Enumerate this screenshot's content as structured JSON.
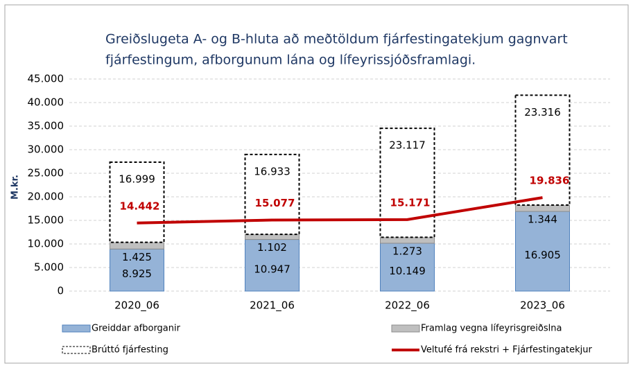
{
  "chart_data": {
    "type": "bar",
    "stacked": true,
    "title": [
      "Greiðslugeta A- og B-hluta að meðtöldum fjárfestingatekjum gagnvart",
      "fjárfestingum, afborgunum lána og lífeyrissjóðsframlagi."
    ],
    "ylabel": "M.kr.",
    "categories": [
      "2020_06",
      "2021_06",
      "2022_06",
      "2023_06"
    ],
    "series": [
      {
        "name": "Greiddar afborganir",
        "color": "#95b3d7",
        "border": "#4f81bd",
        "values": [
          8925,
          10947,
          10149,
          16905
        ],
        "value_labels": [
          "8.925",
          "10.947",
          "10.149",
          "16.905"
        ]
      },
      {
        "name": "Framlag vegna lífeyrisgreiðslna",
        "color": "#bfbfbf",
        "border": "#8c8c8c",
        "values": [
          1425,
          1102,
          1273,
          1344
        ],
        "value_labels": [
          "1.425",
          "1.102",
          "1.273",
          "1.344"
        ]
      },
      {
        "name": "Brúttó fjárfesting",
        "color": "#ffffff",
        "border": "#000000",
        "dashed": true,
        "values": [
          16999,
          16933,
          23117,
          23316
        ],
        "value_labels": [
          "16.999",
          "16.933",
          "23.117",
          "23.316"
        ]
      },
      {
        "name": "Veltufé frá rekstri + Fjárfestingatekjur",
        "type": "line",
        "color": "#c00000",
        "values": [
          14442,
          15077,
          15171,
          19836
        ],
        "value_labels": [
          "14.442",
          "15.077",
          "15.171",
          "19.836"
        ]
      }
    ],
    "ylim": [
      0,
      45000
    ],
    "yticks": [
      0,
      {
        "value": 5000,
        "label": "5.000"
      },
      {
        "value": 10000,
        "label": "10.000"
      },
      {
        "value": 15000,
        "label": "15.000"
      },
      {
        "value": 20000,
        "label": "20.000"
      },
      {
        "value": 25000,
        "label": "25.000"
      },
      {
        "value": 30000,
        "label": "30.000"
      },
      {
        "value": 35000,
        "label": "35.000"
      },
      {
        "value": 40000,
        "label": "40.000"
      },
      {
        "value": 45000,
        "label": "45.000"
      }
    ],
    "grid": true
  }
}
